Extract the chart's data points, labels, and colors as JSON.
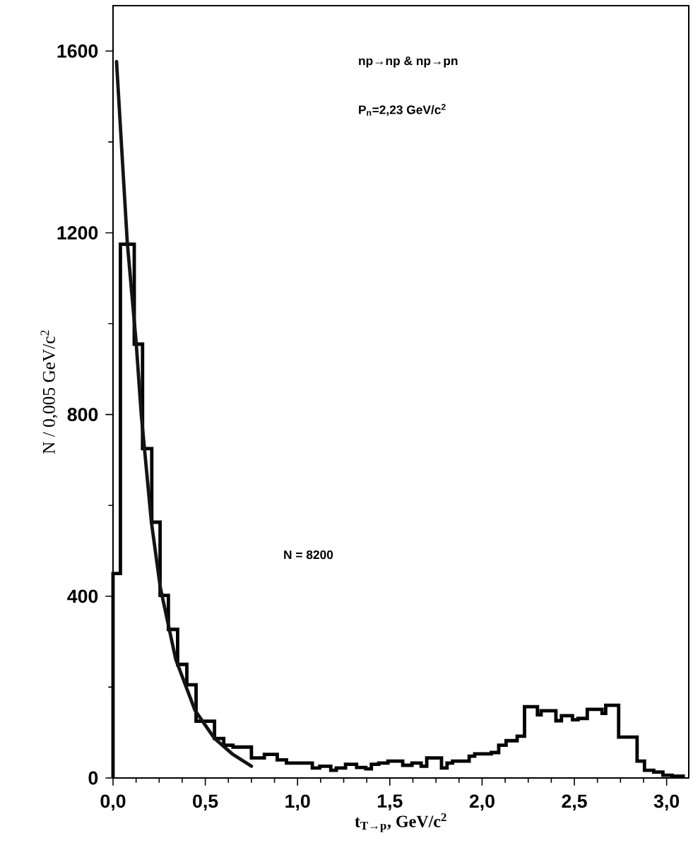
{
  "chart_data": {
    "type": "histogram",
    "xlabel": "t$_{T→p}$, GeV/c$^{2}$",
    "ylabel": "N / 0,005 GeV/c$^{2}$",
    "annotations": [
      "np→np  &  np→pn",
      "P$_{n}$=2,23 GeV/c$^{2}$",
      "N = 8200"
    ],
    "series": [
      {
        "color": "#000000",
        "bins": [
          0,
          0.04,
          0.115,
          0.16,
          0.21,
          0.255,
          0.3,
          0.35,
          0.4,
          0.45,
          0.55,
          0.6,
          0.65,
          0.75,
          0.82,
          0.89,
          0.94,
          1.08,
          1.12,
          1.18,
          1.21,
          1.26,
          1.32,
          1.37,
          1.4,
          1.44,
          1.49,
          1.57,
          1.62,
          1.67,
          1.7,
          1.78,
          1.81,
          1.84,
          1.93,
          1.96,
          2.05,
          2.09,
          2.13,
          2.19,
          2.23,
          2.3,
          2.32,
          2.4,
          2.43,
          2.49,
          2.52,
          2.57,
          2.65,
          2.67,
          2.74,
          2.84,
          2.88,
          2.93,
          2.98,
          3.03,
          3.09
        ],
        "values": [
          450,
          1175,
          955,
          725,
          563,
          402,
          327,
          250,
          205,
          125,
          87,
          72,
          68,
          44,
          52,
          40,
          33,
          22,
          26,
          17,
          22,
          30,
          23,
          20,
          30,
          33,
          37,
          28,
          33,
          26,
          44,
          22,
          33,
          37,
          48,
          53,
          56,
          72,
          82,
          92,
          157,
          139,
          148,
          126,
          137,
          128,
          131,
          151,
          142,
          160,
          90,
          37,
          17,
          13,
          6,
          4
        ]
      },
      {
        "type": "line",
        "color": "#141414",
        "x": [
          0.019,
          0.077,
          0.126,
          0.153,
          0.208,
          0.256,
          0.34,
          0.444,
          0.55,
          0.646,
          0.75
        ],
        "values": [
          1577,
          1180,
          955,
          800,
          563,
          420,
          261,
          149,
          87,
          53,
          26
        ]
      }
    ],
    "xlim": [
      0,
      3.12
    ],
    "ylim": [
      0,
      1700
    ],
    "xticks": [
      {
        "value": 0,
        "label": "0,0"
      },
      {
        "value": 0.5,
        "label": "0,5"
      },
      {
        "value": 1,
        "label": "1,0"
      },
      {
        "value": 1.5,
        "label": "1,5"
      },
      {
        "value": 2,
        "label": "2,0"
      },
      {
        "value": 2.5,
        "label": "2,5"
      },
      {
        "value": 3,
        "label": "3,0"
      }
    ],
    "yticks": [
      0,
      400,
      800,
      1200,
      1600
    ]
  }
}
